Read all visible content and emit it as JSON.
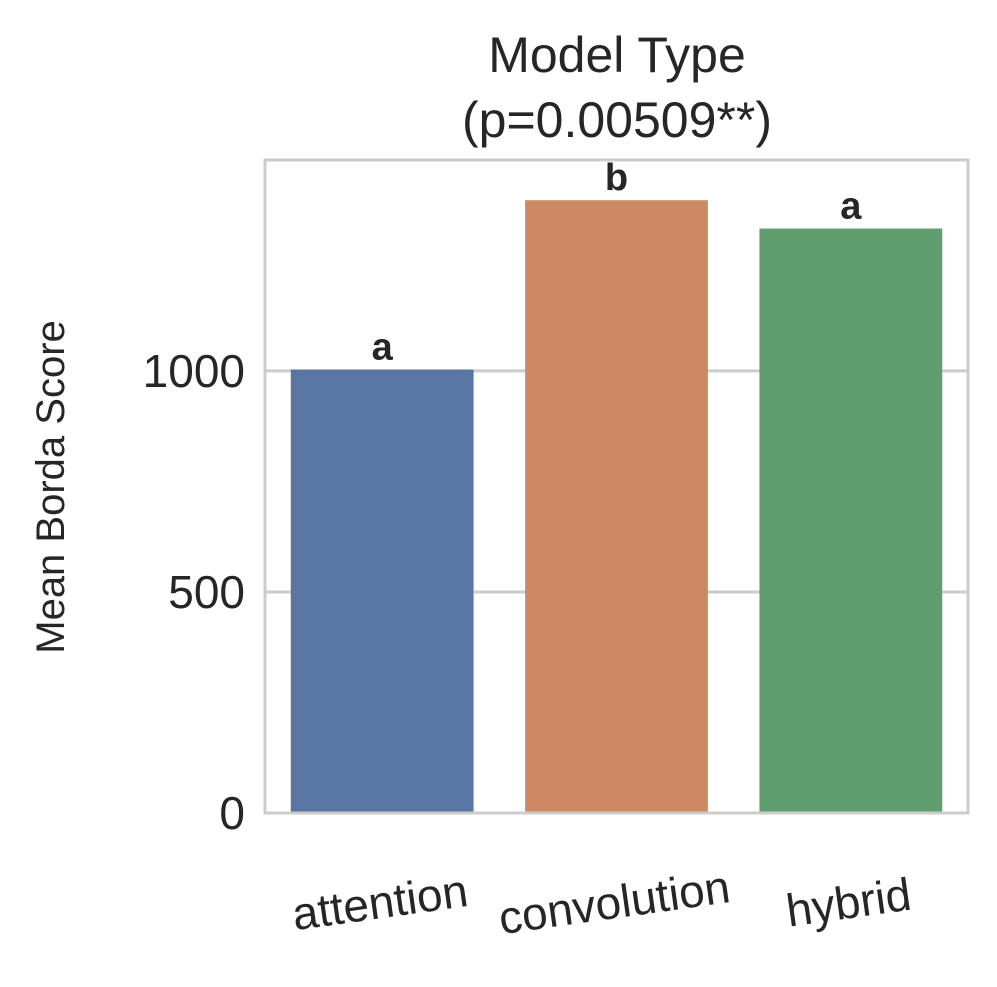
{
  "chart_data": {
    "type": "bar",
    "title_line1": "Model Type",
    "title_line2": "(p=0.00509**)",
    "xlabel": "",
    "ylabel": "Mean Borda Score",
    "categories": [
      "attention",
      "convolution",
      "hybrid"
    ],
    "values": [
      1003,
      1386,
      1322
    ],
    "significance_letters": [
      "a",
      "b",
      "a"
    ],
    "colors": [
      "#5975a4",
      "#cc8963",
      "#5f9e6e"
    ],
    "ylim": [
      0,
      1477
    ],
    "yticks": [
      0,
      500,
      1000
    ],
    "ytick_labels": [
      "0",
      "500",
      "1000"
    ],
    "grid": "horizontal",
    "legend": "none"
  }
}
